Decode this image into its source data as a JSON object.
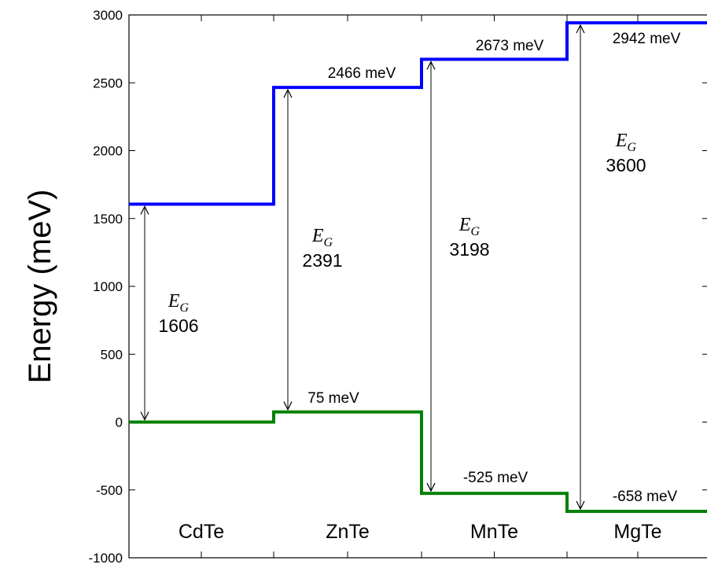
{
  "chart_data": {
    "type": "line",
    "title": "",
    "xlabel": "",
    "ylabel": "Energy (meV)",
    "ylim": [
      -1000,
      3000
    ],
    "yticks": [
      -1000,
      -500,
      0,
      500,
      1000,
      1500,
      2000,
      2500,
      3000
    ],
    "grid": false,
    "categories": [
      "CdTe",
      "ZnTe",
      "MnTe",
      "MgTe"
    ],
    "series": [
      {
        "color": "#0000ff",
        "values": [
          1606,
          2466,
          2673,
          2942
        ]
      },
      {
        "color": "#008000",
        "values": [
          0,
          75,
          -525,
          -658
        ]
      }
    ],
    "conduction_labels": [
      "",
      "2466 meV",
      "2673 meV",
      "2942 meV"
    ],
    "valence_labels": [
      "",
      "75 meV",
      "-525 meV",
      "-658 meV"
    ],
    "gap_symbol": "E",
    "gap_subscript": "G",
    "gaps": [
      "1606",
      "2391",
      "3198",
      "3600"
    ]
  }
}
